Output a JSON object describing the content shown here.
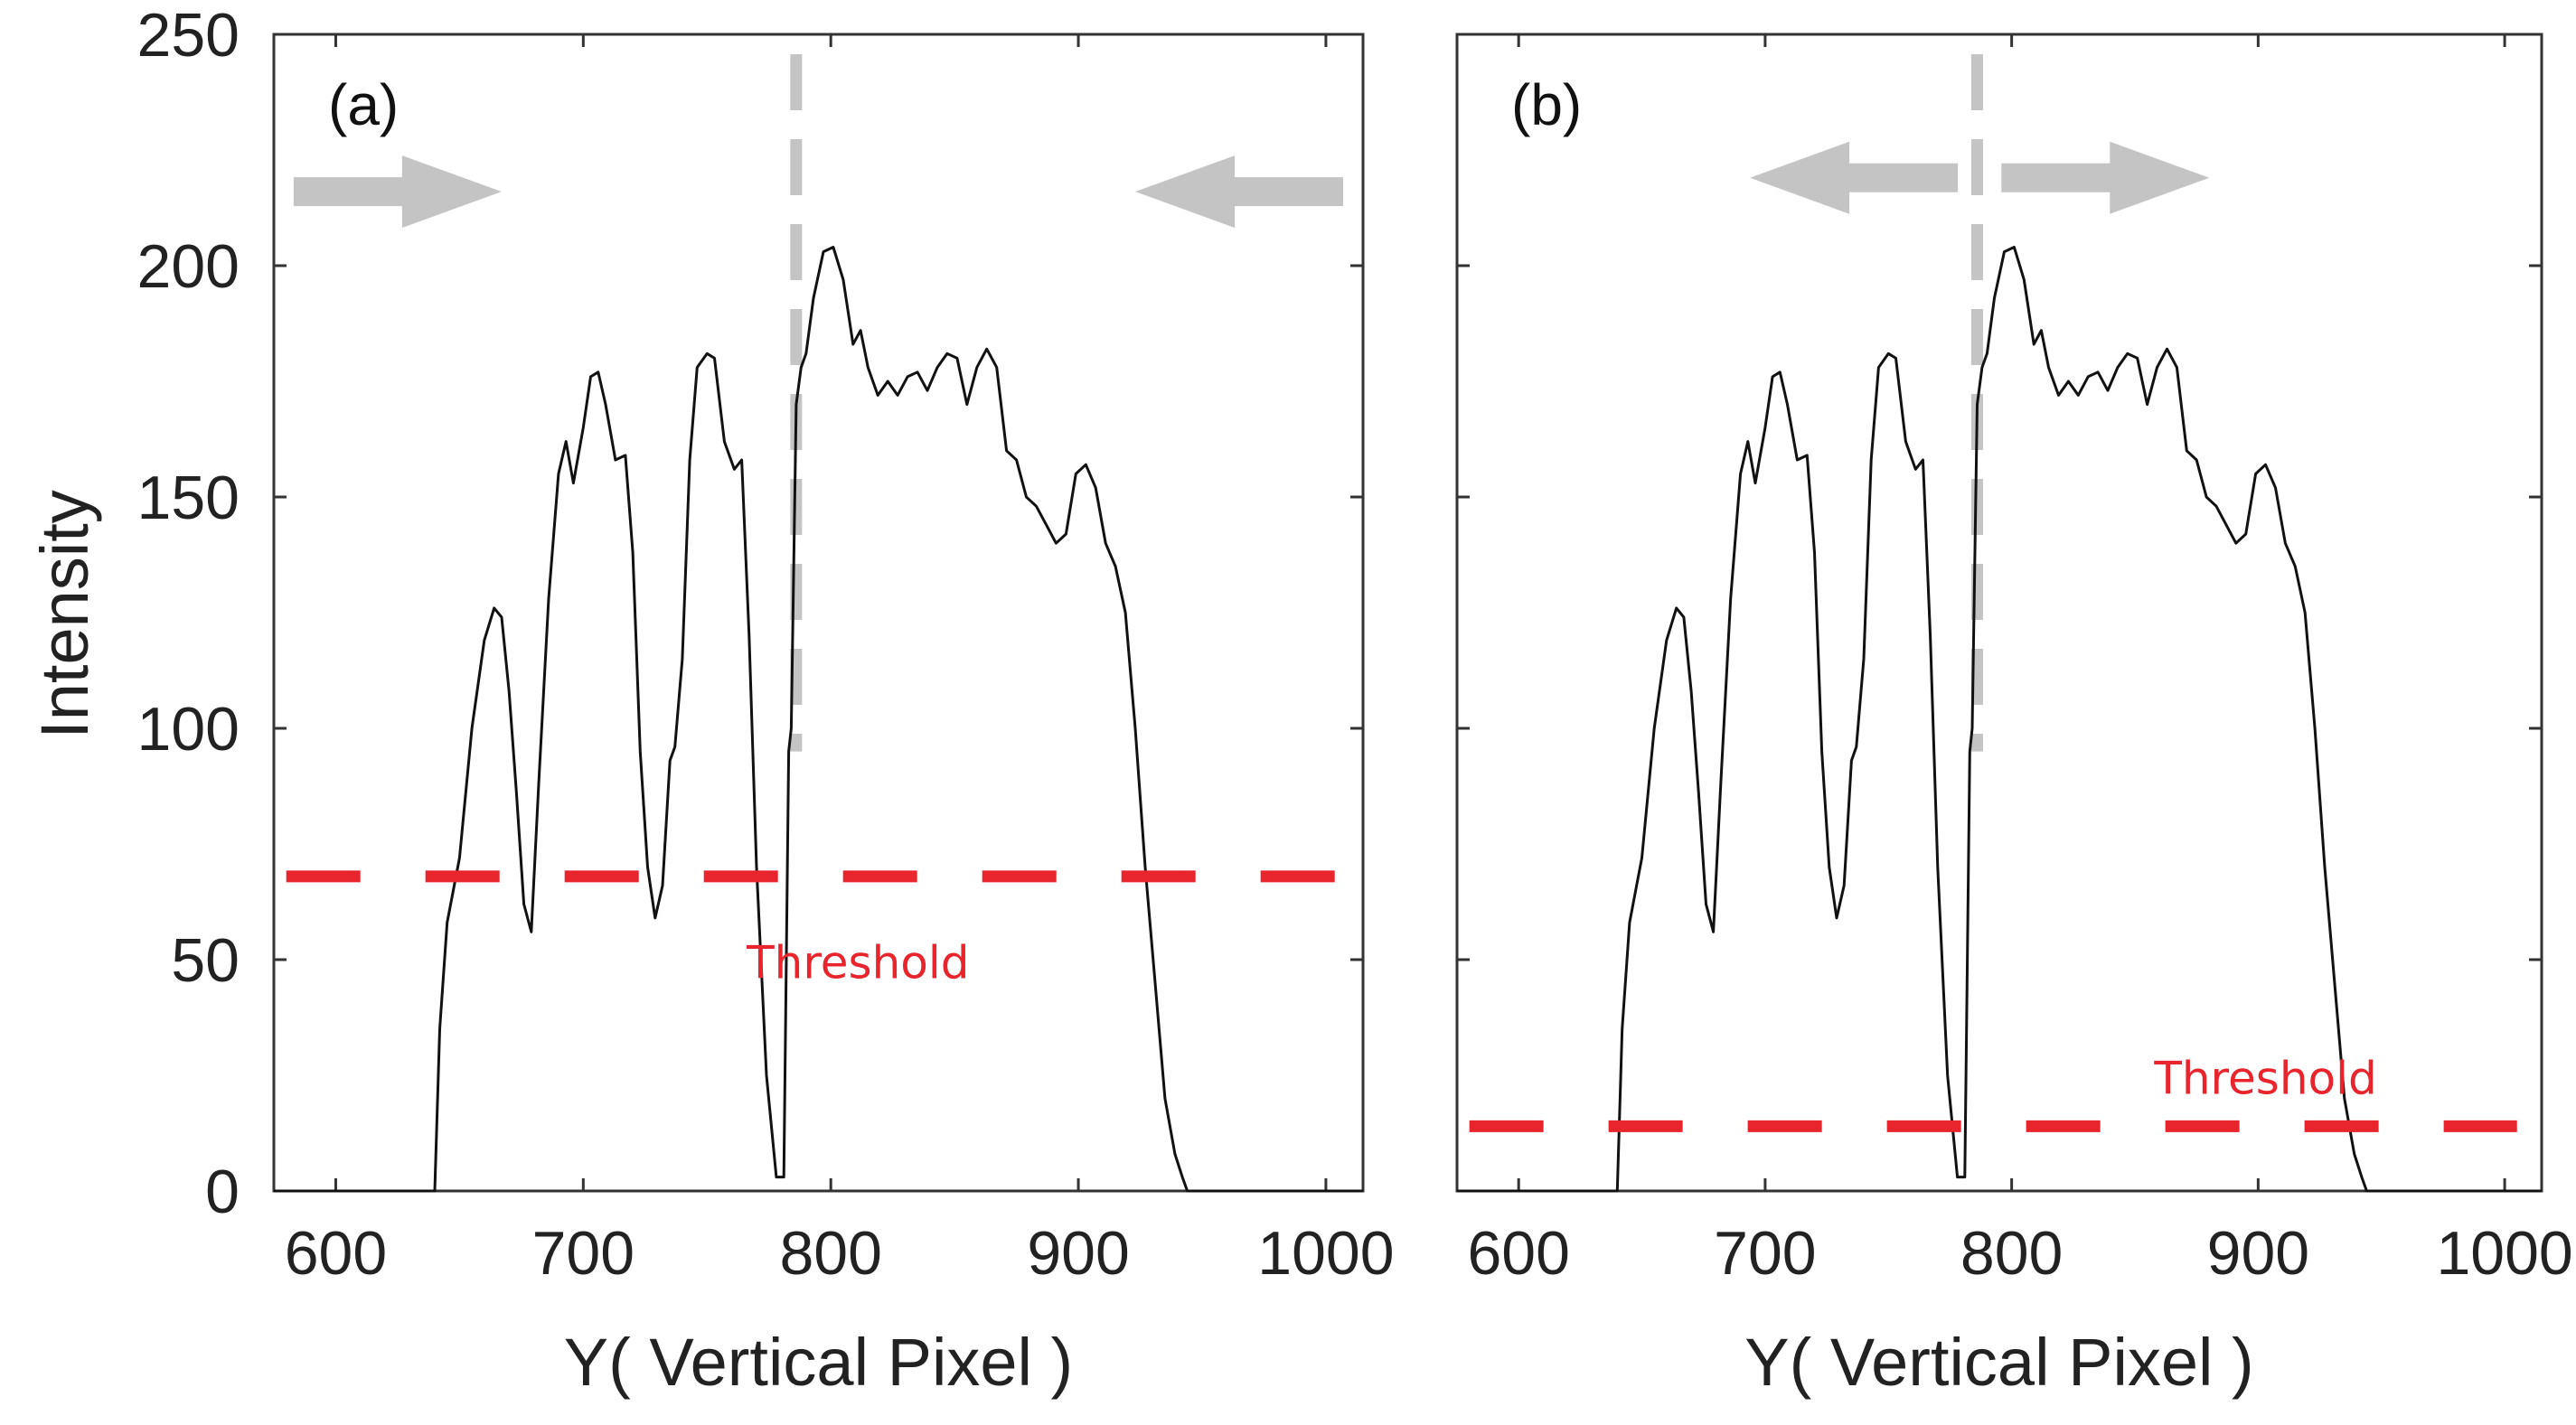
{
  "figure": {
    "y_axis_label": "Intensity",
    "colors": {
      "signal": "#111111",
      "threshold": "#e8242c",
      "marker": "#c4c4c4",
      "axes": "#333333"
    }
  },
  "chart_data": [
    {
      "type": "line",
      "panel_label": "(a)",
      "title": "",
      "xlabel": "Y( Vertical Pixel )",
      "ylabel": "Intensity",
      "xlim": [
        575,
        1015
      ],
      "ylim": [
        0,
        250
      ],
      "xticks": [
        600,
        700,
        800,
        900,
        1000
      ],
      "yticks": [
        0,
        50,
        100,
        150,
        200,
        250
      ],
      "series": [
        {
          "name": "intensity profile",
          "x": [
            575,
            616,
            640,
            642,
            645,
            650,
            655,
            660,
            664,
            667,
            670,
            673,
            676,
            679,
            682,
            686,
            690,
            693,
            696,
            700,
            703,
            706,
            709,
            713,
            717,
            720,
            723,
            726,
            729,
            732,
            735,
            737,
            740,
            743,
            746,
            750,
            753,
            757,
            761,
            764,
            767,
            770,
            774,
            778,
            781,
            783,
            784,
            786,
            788,
            790,
            793,
            797,
            801,
            805,
            809,
            812,
            815,
            819,
            823,
            827,
            831,
            835,
            839,
            843,
            847,
            851,
            855,
            859,
            863,
            867,
            871,
            875,
            879,
            883,
            887,
            891,
            895,
            899,
            903,
            907,
            911,
            915,
            919,
            923,
            927,
            931,
            935,
            939,
            942,
            944,
            946,
            947,
            1015
          ],
          "y": [
            0,
            0,
            0,
            35,
            58,
            72,
            100,
            119,
            126,
            124,
            108,
            86,
            62,
            56,
            88,
            128,
            155,
            162,
            153,
            165,
            176,
            177,
            170,
            158,
            159,
            138,
            95,
            70,
            59,
            66,
            93,
            96,
            115,
            158,
            178,
            181,
            180,
            162,
            156,
            158,
            120,
            70,
            25,
            3,
            3,
            95,
            100,
            170,
            178,
            181,
            193,
            203,
            204,
            197,
            183,
            186,
            178,
            172,
            175,
            172,
            176,
            177,
            173,
            178,
            181,
            180,
            170,
            178,
            182,
            178,
            160,
            158,
            150,
            148,
            144,
            140,
            142,
            155,
            157,
            152,
            140,
            135,
            125,
            100,
            70,
            45,
            20,
            8,
            3,
            0,
            0,
            0,
            0
          ]
        }
      ],
      "threshold": 68,
      "threshold_label": "Threshold",
      "marker_line_x": 786,
      "arrows": [
        "right",
        "left"
      ]
    },
    {
      "type": "line",
      "panel_label": "(b)",
      "title": "",
      "xlabel": "Y( Vertical Pixel )",
      "ylabel": "",
      "xlim": [
        575,
        1015
      ],
      "ylim": [
        0,
        250
      ],
      "xticks": [
        600,
        700,
        800,
        900,
        1000
      ],
      "yticks": [
        0,
        50,
        100,
        150,
        200,
        250
      ],
      "series": [
        {
          "name": "intensity profile",
          "x": [
            575,
            616,
            640,
            642,
            645,
            650,
            655,
            660,
            664,
            667,
            670,
            673,
            676,
            679,
            682,
            686,
            690,
            693,
            696,
            700,
            703,
            706,
            709,
            713,
            717,
            720,
            723,
            726,
            729,
            732,
            735,
            737,
            740,
            743,
            746,
            750,
            753,
            757,
            761,
            764,
            767,
            770,
            774,
            778,
            781,
            783,
            784,
            786,
            788,
            790,
            793,
            797,
            801,
            805,
            809,
            812,
            815,
            819,
            823,
            827,
            831,
            835,
            839,
            843,
            847,
            851,
            855,
            859,
            863,
            867,
            871,
            875,
            879,
            883,
            887,
            891,
            895,
            899,
            903,
            907,
            911,
            915,
            919,
            923,
            927,
            931,
            935,
            939,
            942,
            944,
            946,
            947,
            1015
          ],
          "y": [
            0,
            0,
            0,
            35,
            58,
            72,
            100,
            119,
            126,
            124,
            108,
            86,
            62,
            56,
            88,
            128,
            155,
            162,
            153,
            165,
            176,
            177,
            170,
            158,
            159,
            138,
            95,
            70,
            59,
            66,
            93,
            96,
            115,
            158,
            178,
            181,
            180,
            162,
            156,
            158,
            120,
            70,
            25,
            3,
            3,
            95,
            100,
            170,
            178,
            181,
            193,
            203,
            204,
            197,
            183,
            186,
            178,
            172,
            175,
            172,
            176,
            177,
            173,
            178,
            181,
            180,
            170,
            178,
            182,
            178,
            160,
            158,
            150,
            148,
            144,
            140,
            142,
            155,
            157,
            152,
            140,
            135,
            125,
            100,
            70,
            45,
            20,
            8,
            3,
            0,
            0,
            0,
            0
          ]
        }
      ],
      "threshold": 14,
      "threshold_label": "Threshold",
      "marker_line_x": 786,
      "arrows": [
        "left",
        "right"
      ]
    }
  ]
}
